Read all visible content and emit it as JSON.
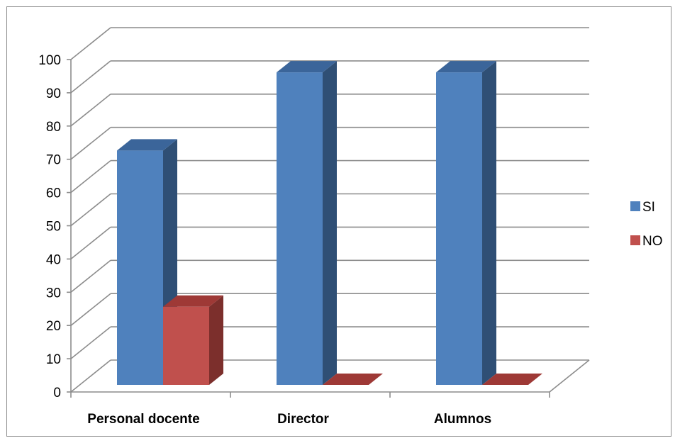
{
  "chart_data": {
    "type": "bar",
    "categories": [
      "Personal docente",
      "Director",
      "Alumnos"
    ],
    "series": [
      {
        "name": "SI",
        "values": [
          75,
          100,
          100
        ],
        "color": "#4F81BD",
        "side_color": "#2F4F75",
        "top_color": "#3B659A"
      },
      {
        "name": "NO",
        "values": [
          25,
          0,
          0
        ],
        "color": "#C0504D",
        "side_color": "#7C2F2C",
        "top_color": "#9E3936"
      }
    ],
    "yticks": [
      "0",
      "10",
      "20",
      "30",
      "40",
      "50",
      "60",
      "70",
      "80",
      "90",
      "100"
    ],
    "ylim": [
      0,
      100
    ],
    "grid": true,
    "legend_position": "right",
    "three_d": true
  }
}
